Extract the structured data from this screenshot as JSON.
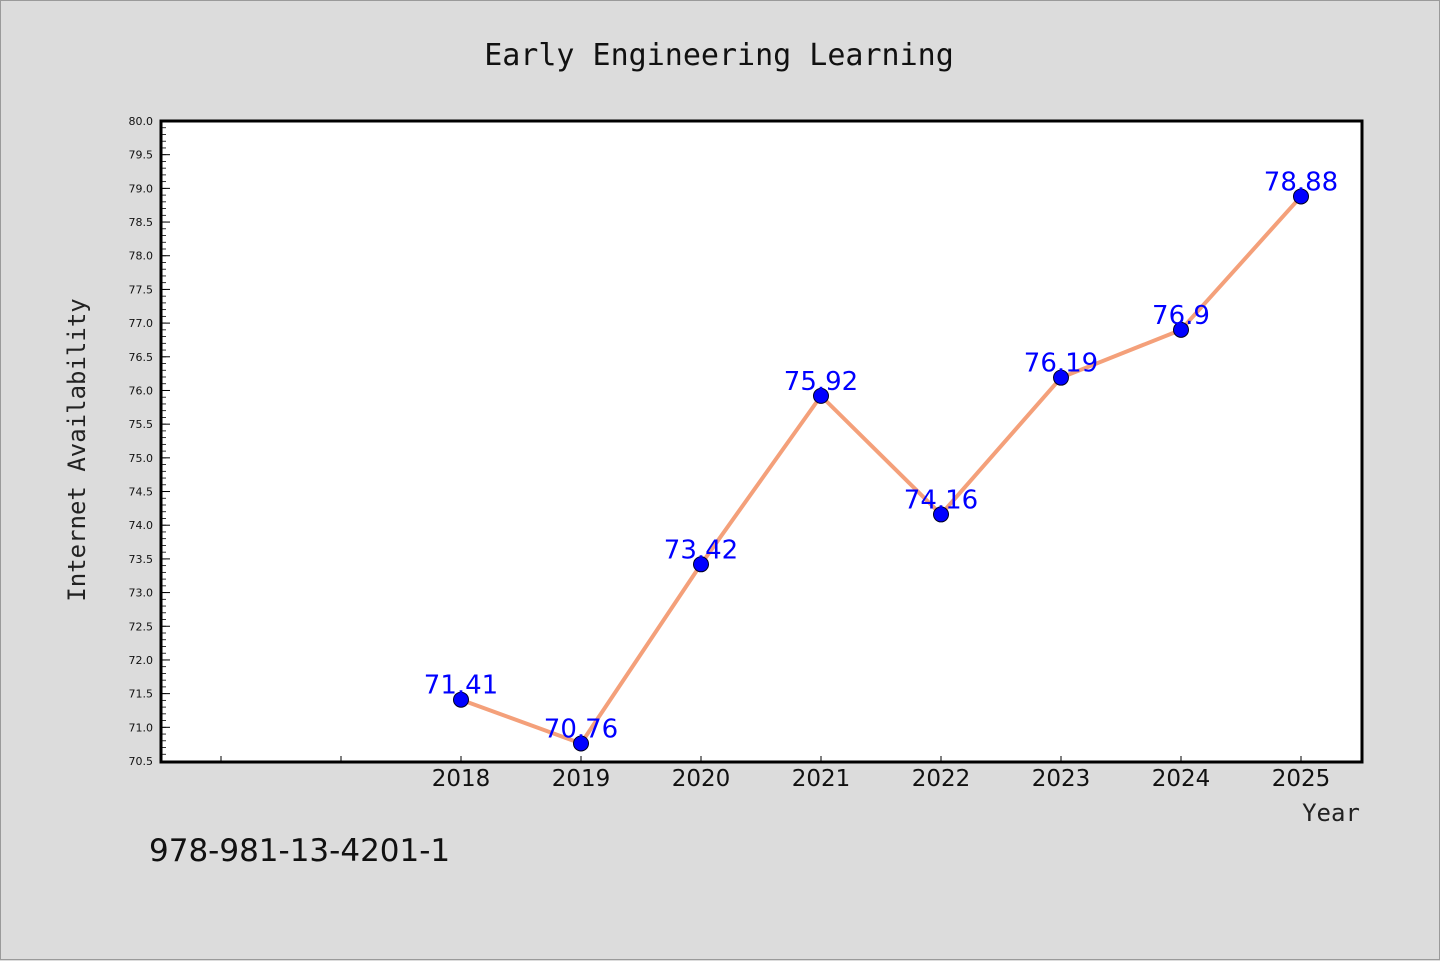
{
  "footer": {
    "code": "978-981-13-4201-1"
  },
  "chart_data": {
    "type": "line",
    "title": "Early Engineering Learning",
    "xlabel": "Year",
    "ylabel": "Internet Availability",
    "x": [
      "2018",
      "2019",
      "2020",
      "2021",
      "2022",
      "2023",
      "2024",
      "2025"
    ],
    "series": [
      {
        "values": [
          71.41,
          70.76,
          73.42,
          75.92,
          74.16,
          76.19,
          76.9,
          78.88
        ]
      }
    ],
    "data_labels": [
      "71.41",
      "70.76",
      "73.42",
      "75.92",
      "74.16",
      "76.19",
      "76.9",
      "78.88"
    ],
    "ylim": [
      70.5,
      80.0
    ],
    "yticks": [
      "70.5",
      "71.0",
      "71.5",
      "72.0",
      "72.5",
      "73.0",
      "73.5",
      "74.0",
      "74.5",
      "75.0",
      "75.5",
      "76.0",
      "76.5",
      "77.0",
      "77.5",
      "78.0",
      "78.5",
      "79.0",
      "79.5",
      "80.0"
    ],
    "grid": false,
    "line_color": "#f4a07a",
    "marker_color": "#0000ff",
    "label_color": "#0000ff"
  }
}
